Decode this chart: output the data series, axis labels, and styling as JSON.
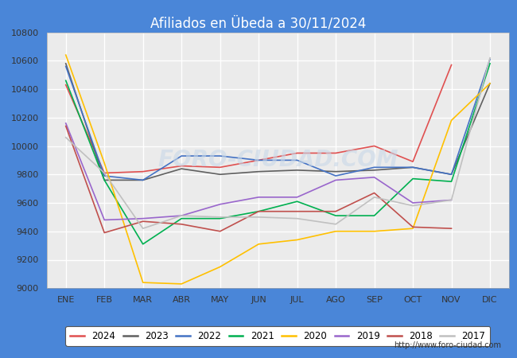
{
  "title": "Afiliados en Übeda a 30/11/2024",
  "title_bg_color": "#4a86d8",
  "title_text_color": "white",
  "months": [
    "ENE",
    "FEB",
    "MAR",
    "ABR",
    "MAY",
    "JUN",
    "JUL",
    "AGO",
    "SEP",
    "OCT",
    "NOV",
    "DIC"
  ],
  "ylim": [
    9000,
    10800
  ],
  "yticks": [
    9000,
    9200,
    9400,
    9600,
    9800,
    10000,
    10200,
    10400,
    10600,
    10800
  ],
  "series": {
    "2024": {
      "color": "#e05050",
      "data": [
        10430,
        9810,
        9820,
        9860,
        9850,
        9900,
        9950,
        9950,
        10000,
        9890,
        10570,
        null
      ]
    },
    "2023": {
      "color": "#606060",
      "data": [
        10580,
        9760,
        9760,
        9840,
        9800,
        9820,
        9830,
        9820,
        9830,
        9850,
        9800,
        10440
      ]
    },
    "2022": {
      "color": "#4472C4",
      "data": [
        10560,
        9790,
        9760,
        9930,
        9930,
        9900,
        9900,
        9790,
        9850,
        9850,
        9800,
        10610
      ]
    },
    "2021": {
      "color": "#00b050",
      "data": [
        10460,
        9760,
        9310,
        9490,
        9490,
        9540,
        9610,
        9510,
        9510,
        9770,
        9750,
        10580
      ]
    },
    "2020": {
      "color": "#ffc000",
      "data": [
        10640,
        9880,
        9040,
        9030,
        9150,
        9310,
        9340,
        9400,
        9400,
        9420,
        10180,
        10440
      ]
    },
    "2019": {
      "color": "#9966cc",
      "data": [
        10160,
        9480,
        9490,
        9510,
        9590,
        9640,
        9640,
        9760,
        9780,
        9600,
        9620,
        null
      ]
    },
    "2018": {
      "color": "#c0504d",
      "data": [
        10140,
        9390,
        9470,
        9450,
        9400,
        9540,
        9540,
        9540,
        9670,
        9430,
        9420,
        null
      ]
    },
    "2017": {
      "color": "#c0c0c0",
      "data": [
        10060,
        9810,
        9420,
        9510,
        9500,
        9500,
        9490,
        9450,
        9640,
        9580,
        9620,
        10620
      ]
    }
  },
  "watermark": "FORO-CIUDAD.COM",
  "url": "http://www.foro-ciudad.com",
  "plot_bg_color": "#ebebeb",
  "grid_color": "white",
  "legend_years": [
    "2024",
    "2023",
    "2022",
    "2021",
    "2020",
    "2019",
    "2018",
    "2017"
  ],
  "fig_bg_color": "#4a86d8"
}
